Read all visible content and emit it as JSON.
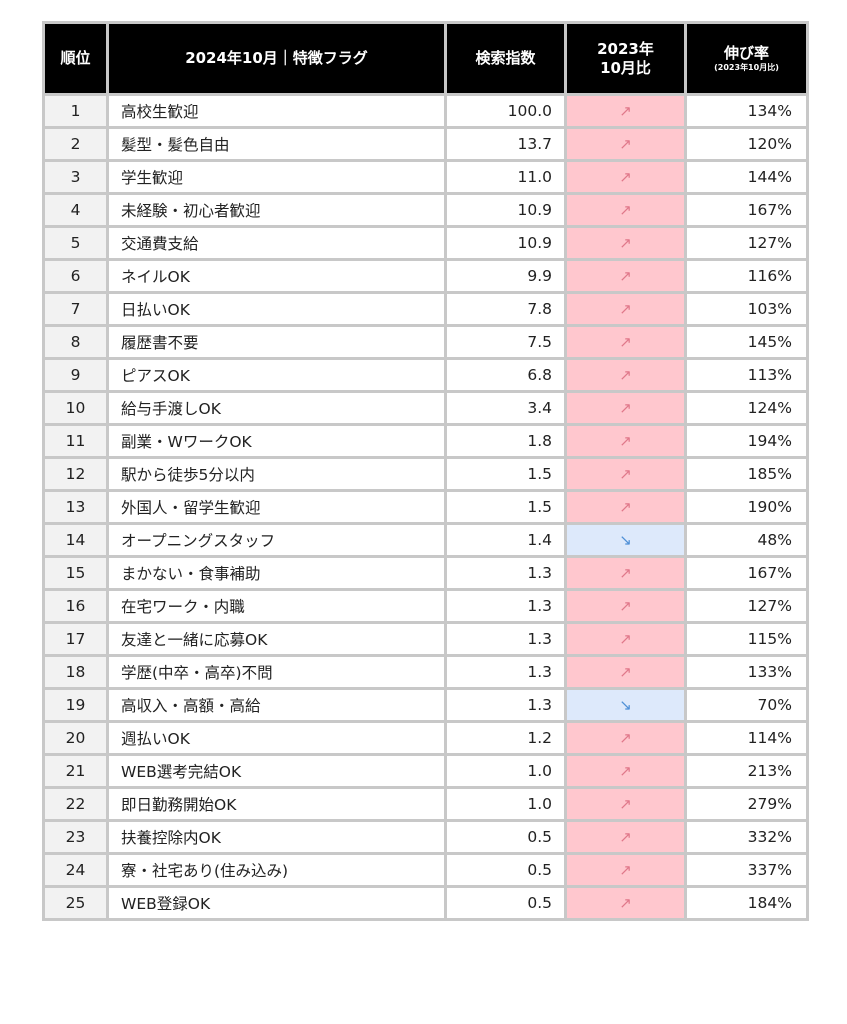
{
  "table": {
    "headers": {
      "rank": "順位",
      "flag": "2024年10月｜特徴フラグ",
      "index": "検索指数",
      "compare_line1": "2023年",
      "compare_line2": "10月比",
      "rate": "伸び率",
      "rate_sub": "(2023年10月比)"
    },
    "colors": {
      "header_bg": "#000000",
      "up_bg": "#ffc7ce",
      "down_bg": "#dde9fb"
    },
    "rows": [
      {
        "rank": "1",
        "flag": "高校生歓迎",
        "index": "100.0",
        "trend": "up",
        "arrow": "↗",
        "rate": "134%"
      },
      {
        "rank": "2",
        "flag": "髪型・髪色自由",
        "index": "13.7",
        "trend": "up",
        "arrow": "↗",
        "rate": "120%"
      },
      {
        "rank": "3",
        "flag": "学生歓迎",
        "index": "11.0",
        "trend": "up",
        "arrow": "↗",
        "rate": "144%"
      },
      {
        "rank": "4",
        "flag": "未経験・初心者歓迎",
        "index": "10.9",
        "trend": "up",
        "arrow": "↗",
        "rate": "167%"
      },
      {
        "rank": "5",
        "flag": "交通費支給",
        "index": "10.9",
        "trend": "up",
        "arrow": "↗",
        "rate": "127%"
      },
      {
        "rank": "6",
        "flag": "ネイルOK",
        "index": "9.9",
        "trend": "up",
        "arrow": "↗",
        "rate": "116%"
      },
      {
        "rank": "7",
        "flag": "日払いOK",
        "index": "7.8",
        "trend": "up",
        "arrow": "↗",
        "rate": "103%"
      },
      {
        "rank": "8",
        "flag": "履歴書不要",
        "index": "7.5",
        "trend": "up",
        "arrow": "↗",
        "rate": "145%"
      },
      {
        "rank": "9",
        "flag": "ピアスOK",
        "index": "6.8",
        "trend": "up",
        "arrow": "↗",
        "rate": "113%"
      },
      {
        "rank": "10",
        "flag": "給与手渡しOK",
        "index": "3.4",
        "trend": "up",
        "arrow": "↗",
        "rate": "124%"
      },
      {
        "rank": "11",
        "flag": "副業・WワークOK",
        "index": "1.8",
        "trend": "up",
        "arrow": "↗",
        "rate": "194%"
      },
      {
        "rank": "12",
        "flag": "駅から徒歩5分以内",
        "index": "1.5",
        "trend": "up",
        "arrow": "↗",
        "rate": "185%"
      },
      {
        "rank": "13",
        "flag": "外国人・留学生歓迎",
        "index": "1.5",
        "trend": "up",
        "arrow": "↗",
        "rate": "190%"
      },
      {
        "rank": "14",
        "flag": "オープニングスタッフ",
        "index": "1.4",
        "trend": "down",
        "arrow": "↘",
        "rate": "48%"
      },
      {
        "rank": "15",
        "flag": "まかない・食事補助",
        "index": "1.3",
        "trend": "up",
        "arrow": "↗",
        "rate": "167%"
      },
      {
        "rank": "16",
        "flag": "在宅ワーク・内職",
        "index": "1.3",
        "trend": "up",
        "arrow": "↗",
        "rate": "127%"
      },
      {
        "rank": "17",
        "flag": "友達と一緒に応募OK",
        "index": "1.3",
        "trend": "up",
        "arrow": "↗",
        "rate": "115%"
      },
      {
        "rank": "18",
        "flag": "学歴(中卒・高卒)不問",
        "index": "1.3",
        "trend": "up",
        "arrow": "↗",
        "rate": "133%"
      },
      {
        "rank": "19",
        "flag": "高収入・高額・高給",
        "index": "1.3",
        "trend": "down",
        "arrow": "↘",
        "rate": "70%"
      },
      {
        "rank": "20",
        "flag": "週払いOK",
        "index": "1.2",
        "trend": "up",
        "arrow": "↗",
        "rate": "114%"
      },
      {
        "rank": "21",
        "flag": "WEB選考完結OK",
        "index": "1.0",
        "trend": "up",
        "arrow": "↗",
        "rate": "213%"
      },
      {
        "rank": "22",
        "flag": "即日勤務開始OK",
        "index": "1.0",
        "trend": "up",
        "arrow": "↗",
        "rate": "279%"
      },
      {
        "rank": "23",
        "flag": "扶養控除内OK",
        "index": "0.5",
        "trend": "up",
        "arrow": "↗",
        "rate": "332%"
      },
      {
        "rank": "24",
        "flag": "寮・社宅あり(住み込み)",
        "index": "0.5",
        "trend": "up",
        "arrow": "↗",
        "rate": "337%"
      },
      {
        "rank": "25",
        "flag": "WEB登録OK",
        "index": "0.5",
        "trend": "up",
        "arrow": "↗",
        "rate": "184%"
      }
    ]
  }
}
